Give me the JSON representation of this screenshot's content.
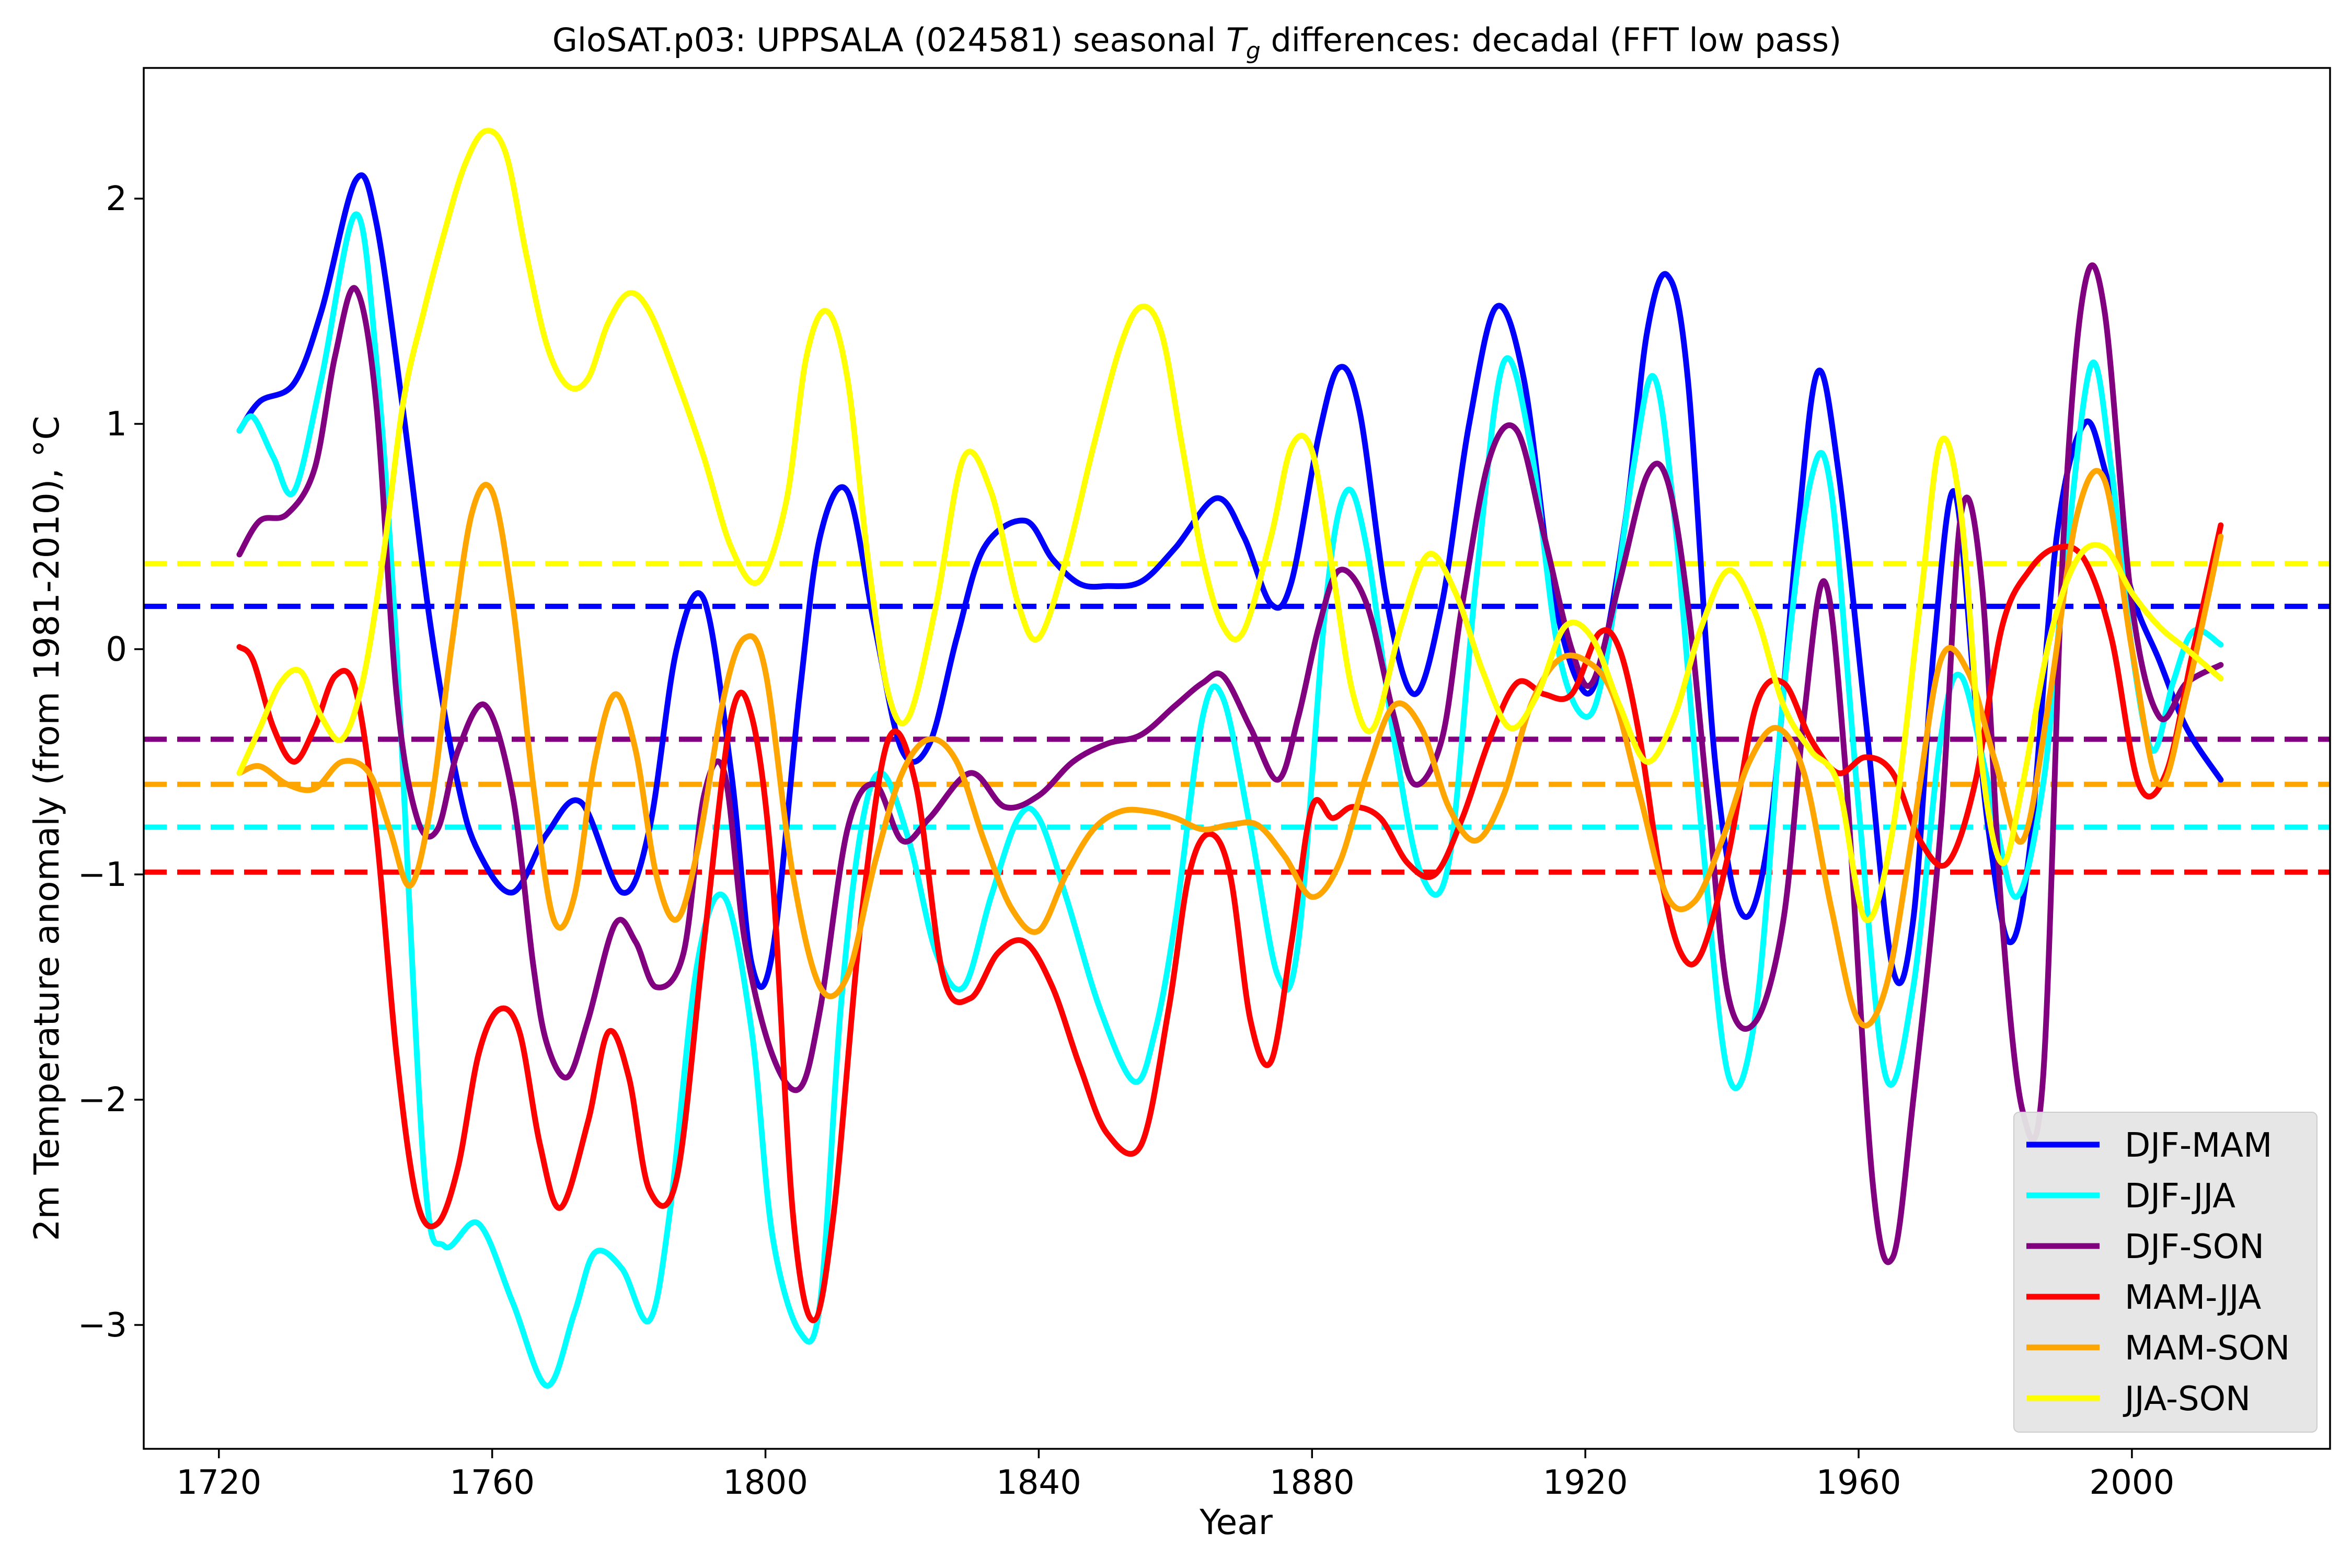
{
  "chart_data": {
    "type": "line",
    "title": "GloSAT.p03: UPPSALA (024581) seasonal T_g differences: decadal (FFT low pass)",
    "title_parts": {
      "prefix": "GloSAT.p03: UPPSALA (024581) seasonal ",
      "symbol": "T",
      "subscript": "g",
      "suffix": " differences: decadal (FFT low pass)"
    },
    "xlabel": "Year",
    "ylabel": "2m Temperature anomaly (from 1981-2010), °C",
    "xlim": [
      1709,
      2029
    ],
    "ylim": [
      -3.55,
      2.58
    ],
    "xticks": [
      {
        "value": 1720,
        "label": "1720"
      },
      {
        "value": 1760,
        "label": "1760"
      },
      {
        "value": 1800,
        "label": "1800"
      },
      {
        "value": 1840,
        "label": "1840"
      },
      {
        "value": 1880,
        "label": "1880"
      },
      {
        "value": 1920,
        "label": "1920"
      },
      {
        "value": 1960,
        "label": "1960"
      },
      {
        "value": 2000,
        "label": "2000"
      }
    ],
    "yticks": [
      {
        "value": -3,
        "label": "−3"
      },
      {
        "value": -2,
        "label": "−2"
      },
      {
        "value": -1,
        "label": "−1"
      },
      {
        "value": 0,
        "label": "0"
      },
      {
        "value": 1,
        "label": "1"
      },
      {
        "value": 2,
        "label": "2"
      }
    ],
    "grid": false,
    "legend_position": "lower-right",
    "series": [
      {
        "name": "DJF-MAM",
        "color": "#0000ff",
        "mean": 0.19,
        "x": [
          1723,
          1726,
          1731,
          1735,
          1740,
          1743,
          1747,
          1751,
          1755,
          1758,
          1763,
          1768,
          1773,
          1779,
          1783,
          1787,
          1791,
          1795,
          1798,
          1801,
          1805,
          1808,
          1812,
          1816,
          1820,
          1824,
          1828,
          1832,
          1838,
          1842,
          1846,
          1850,
          1855,
          1860,
          1866,
          1870,
          1874,
          1877,
          1881,
          1884,
          1887,
          1891,
          1895,
          1899,
          1903,
          1907,
          1911,
          1915,
          1919,
          1922,
          1926,
          1929,
          1932,
          1935,
          1939,
          1943,
          1947,
          1951,
          1954,
          1957,
          1961,
          1965,
          1968,
          1971,
          1974,
          1977,
          1979,
          1982,
          1985,
          1989,
          1993,
          1996,
          2000,
          2004,
          2008,
          2013
        ],
        "y": [
          0.97,
          1.1,
          1.18,
          1.5,
          2.08,
          1.9,
          1.05,
          0.1,
          -0.6,
          -0.9,
          -1.08,
          -0.82,
          -0.68,
          -1.08,
          -0.8,
          0.0,
          0.22,
          -0.55,
          -1.4,
          -1.35,
          -0.2,
          0.5,
          0.7,
          0.1,
          -0.45,
          -0.42,
          0.05,
          0.45,
          0.57,
          0.4,
          0.29,
          0.28,
          0.3,
          0.45,
          0.67,
          0.5,
          0.2,
          0.3,
          0.95,
          1.25,
          1.05,
          0.2,
          -0.2,
          0.2,
          1.0,
          1.52,
          1.2,
          0.3,
          -0.15,
          -0.1,
          0.6,
          1.4,
          1.66,
          1.2,
          -0.5,
          -1.18,
          -0.8,
          0.5,
          1.23,
          0.8,
          -0.3,
          -1.42,
          -1.2,
          0.0,
          0.7,
          -0.2,
          -0.8,
          -1.3,
          -0.9,
          0.5,
          1.0,
          0.8,
          0.25,
          -0.05,
          -0.35,
          -0.58
        ]
      },
      {
        "name": "DJF-JJA",
        "color": "#00ffff",
        "mean": -0.79,
        "x": [
          1723,
          1725,
          1728,
          1731,
          1735,
          1740,
          1743,
          1746,
          1750,
          1753,
          1758,
          1763,
          1768,
          1772,
          1775,
          1779,
          1783,
          1786,
          1790,
          1794,
          1798,
          1801,
          1805,
          1808,
          1811,
          1814,
          1817,
          1821,
          1825,
          1829,
          1833,
          1837,
          1840,
          1844,
          1849,
          1854,
          1857,
          1860,
          1864,
          1867,
          1871,
          1875,
          1878,
          1882,
          1885,
          1888,
          1892,
          1896,
          1900,
          1904,
          1908,
          1912,
          1916,
          1920,
          1923,
          1927,
          1930,
          1933,
          1937,
          1941,
          1945,
          1949,
          1953,
          1956,
          1960,
          1964,
          1968,
          1972,
          1975,
          1979,
          1983,
          1987,
          1990,
          1994,
          1997,
          2000,
          2003,
          2006,
          2009,
          2013
        ],
        "y": [
          0.97,
          1.03,
          0.85,
          0.7,
          1.2,
          1.93,
          1.3,
          0.0,
          -2.3,
          -2.65,
          -2.55,
          -2.9,
          -3.27,
          -2.95,
          -2.68,
          -2.75,
          -2.98,
          -2.5,
          -1.4,
          -1.1,
          -1.7,
          -2.6,
          -3.03,
          -2.9,
          -1.6,
          -0.8,
          -0.55,
          -0.85,
          -1.35,
          -1.5,
          -1.1,
          -0.75,
          -0.75,
          -1.1,
          -1.6,
          -1.92,
          -1.7,
          -1.2,
          -0.3,
          -0.22,
          -0.8,
          -1.45,
          -1.3,
          0.2,
          0.7,
          0.45,
          -0.4,
          -1.0,
          -0.95,
          0.3,
          1.27,
          0.9,
          0.0,
          -0.3,
          -0.05,
          0.8,
          1.21,
          0.6,
          -0.8,
          -1.9,
          -1.6,
          -0.2,
          0.75,
          0.7,
          -0.7,
          -1.9,
          -1.5,
          -0.4,
          -0.12,
          -0.6,
          -1.1,
          -0.6,
          0.3,
          1.26,
          0.8,
          0.0,
          -0.45,
          -0.15,
          0.08,
          0.02
        ]
      },
      {
        "name": "DJF-SON",
        "color": "#800080",
        "mean": -0.4,
        "x": [
          1723,
          1726,
          1730,
          1734,
          1737,
          1740,
          1743,
          1746,
          1749,
          1752,
          1755,
          1759,
          1763,
          1766,
          1768,
          1771,
          1774,
          1778,
          1781,
          1784,
          1788,
          1791,
          1794,
          1797,
          1801,
          1805,
          1808,
          1812,
          1816,
          1820,
          1824,
          1830,
          1835,
          1840,
          1845,
          1850,
          1855,
          1860,
          1864,
          1867,
          1871,
          1875,
          1878,
          1881,
          1884,
          1888,
          1892,
          1895,
          1899,
          1902,
          1906,
          1910,
          1914,
          1918,
          1921,
          1925,
          1929,
          1932,
          1935,
          1938,
          1941,
          1945,
          1949,
          1952,
          1955,
          1958,
          1962,
          1965,
          1968,
          1972,
          1975,
          1978,
          1981,
          1984,
          1987,
          1990,
          1993,
          1996,
          2000,
          2004,
          2008,
          2013
        ],
        "y": [
          0.42,
          0.57,
          0.6,
          0.8,
          1.3,
          1.6,
          1.1,
          -0.2,
          -0.75,
          -0.8,
          -0.45,
          -0.25,
          -0.65,
          -1.4,
          -1.75,
          -1.9,
          -1.65,
          -1.22,
          -1.3,
          -1.5,
          -1.35,
          -0.65,
          -0.55,
          -1.3,
          -1.8,
          -1.95,
          -1.6,
          -0.8,
          -0.6,
          -0.85,
          -0.75,
          -0.55,
          -0.7,
          -0.65,
          -0.5,
          -0.42,
          -0.38,
          -0.25,
          -0.15,
          -0.12,
          -0.35,
          -0.58,
          -0.3,
          0.1,
          0.35,
          0.2,
          -0.3,
          -0.6,
          -0.4,
          0.2,
          0.85,
          0.97,
          0.5,
          0.0,
          -0.15,
          0.3,
          0.77,
          0.75,
          0.2,
          -0.7,
          -1.55,
          -1.65,
          -1.2,
          -0.3,
          0.3,
          -0.5,
          -2.35,
          -2.7,
          -2.0,
          -0.8,
          0.6,
          0.3,
          -1.2,
          -2.05,
          -1.9,
          0.5,
          1.6,
          1.5,
          0.2,
          -0.3,
          -0.15,
          -0.07
        ]
      },
      {
        "name": "MAM-JJA",
        "color": "#ff0000",
        "mean": -0.99,
        "x": [
          1723,
          1725,
          1728,
          1731,
          1734,
          1737,
          1740,
          1743,
          1746,
          1749,
          1752,
          1755,
          1758,
          1761,
          1764,
          1767,
          1770,
          1774,
          1777,
          1780,
          1783,
          1787,
          1791,
          1795,
          1798,
          1801,
          1804,
          1807,
          1810,
          1814,
          1818,
          1822,
          1826,
          1830,
          1834,
          1838,
          1842,
          1846,
          1850,
          1855,
          1859,
          1862,
          1865,
          1868,
          1871,
          1874,
          1877,
          1880,
          1883,
          1886,
          1890,
          1894,
          1898,
          1902,
          1906,
          1910,
          1914,
          1918,
          1922,
          1925,
          1928,
          1931,
          1934,
          1937,
          1941,
          1945,
          1949,
          1953,
          1957,
          1961,
          1965,
          1969,
          1973,
          1977,
          1981,
          1985,
          1989,
          1993,
          1997,
          2001,
          2005,
          2009,
          2013
        ],
        "y": [
          0.01,
          -0.05,
          -0.35,
          -0.5,
          -0.35,
          -0.12,
          -0.18,
          -0.8,
          -1.8,
          -2.45,
          -2.55,
          -2.3,
          -1.8,
          -1.6,
          -1.7,
          -2.2,
          -2.48,
          -2.1,
          -1.7,
          -1.9,
          -2.4,
          -2.35,
          -1.3,
          -0.3,
          -0.3,
          -1.0,
          -2.5,
          -2.98,
          -2.5,
          -1.2,
          -0.4,
          -0.6,
          -1.45,
          -1.55,
          -1.35,
          -1.3,
          -1.5,
          -1.85,
          -2.15,
          -2.2,
          -1.6,
          -1.0,
          -0.82,
          -1.0,
          -1.65,
          -1.83,
          -1.3,
          -0.7,
          -0.75,
          -0.7,
          -0.75,
          -0.95,
          -1.0,
          -0.75,
          -0.4,
          -0.15,
          -0.2,
          -0.2,
          0.07,
          0.0,
          -0.4,
          -1.0,
          -1.35,
          -1.35,
          -0.9,
          -0.25,
          -0.15,
          -0.4,
          -0.55,
          -0.48,
          -0.55,
          -0.85,
          -0.95,
          -0.6,
          0.1,
          0.35,
          0.45,
          0.4,
          0.05,
          -0.6,
          -0.55,
          0.0,
          0.55
        ]
      },
      {
        "name": "MAM-SON",
        "color": "#ffa500",
        "mean": -0.6,
        "x": [
          1723,
          1726,
          1730,
          1734,
          1738,
          1742,
          1745,
          1748,
          1751,
          1754,
          1757,
          1760,
          1763,
          1766,
          1769,
          1772,
          1775,
          1778,
          1781,
          1784,
          1787,
          1790,
          1794,
          1797,
          1800,
          1804,
          1808,
          1812,
          1816,
          1820,
          1824,
          1828,
          1832,
          1836,
          1840,
          1844,
          1848,
          1852,
          1856,
          1860,
          1864,
          1868,
          1872,
          1876,
          1880,
          1884,
          1888,
          1892,
          1896,
          1900,
          1904,
          1908,
          1912,
          1916,
          1920,
          1924,
          1928,
          1932,
          1936,
          1940,
          1944,
          1948,
          1952,
          1956,
          1960,
          1964,
          1968,
          1972,
          1976,
          1980,
          1984,
          1988,
          1992,
          1996,
          2000,
          2004,
          2008,
          2013
        ],
        "y": [
          -0.55,
          -0.52,
          -0.6,
          -0.62,
          -0.5,
          -0.55,
          -0.8,
          -1.05,
          -0.7,
          0.0,
          0.6,
          0.7,
          0.2,
          -0.6,
          -1.2,
          -1.1,
          -0.5,
          -0.2,
          -0.45,
          -1.0,
          -1.2,
          -0.9,
          -0.2,
          0.05,
          -0.1,
          -1.0,
          -1.5,
          -1.45,
          -0.95,
          -0.55,
          -0.4,
          -0.5,
          -0.85,
          -1.15,
          -1.25,
          -1.0,
          -0.8,
          -0.72,
          -0.72,
          -0.75,
          -0.8,
          -0.78,
          -0.78,
          -0.92,
          -1.1,
          -0.95,
          -0.55,
          -0.25,
          -0.35,
          -0.7,
          -0.85,
          -0.65,
          -0.25,
          -0.05,
          -0.05,
          -0.2,
          -0.65,
          -1.1,
          -1.12,
          -0.85,
          -0.5,
          -0.35,
          -0.55,
          -1.15,
          -1.65,
          -1.5,
          -0.8,
          -0.05,
          -0.1,
          -0.5,
          -0.85,
          -0.2,
          0.6,
          0.75,
          0.0,
          -0.6,
          -0.2,
          0.5
        ]
      },
      {
        "name": "JJA-SON",
        "color": "#ffff00",
        "mean": 0.38,
        "x": [
          1723,
          1726,
          1729,
          1732,
          1735,
          1738,
          1741,
          1744,
          1747,
          1750,
          1753,
          1756,
          1759,
          1762,
          1765,
          1768,
          1771,
          1774,
          1777,
          1780,
          1783,
          1787,
          1791,
          1795,
          1799,
          1803,
          1806,
          1809,
          1812,
          1815,
          1818,
          1821,
          1825,
          1829,
          1833,
          1837,
          1840,
          1844,
          1848,
          1852,
          1855,
          1858,
          1861,
          1864,
          1867,
          1870,
          1874,
          1877,
          1880,
          1883,
          1886,
          1889,
          1893,
          1897,
          1901,
          1905,
          1909,
          1913,
          1917,
          1921,
          1925,
          1929,
          1933,
          1937,
          1941,
          1945,
          1949,
          1953,
          1957,
          1961,
          1965,
          1969,
          1972,
          1975,
          1978,
          1981,
          1984,
          1988,
          1992,
          1996,
          2000,
          2004,
          2008,
          2013
        ],
        "y": [
          -0.55,
          -0.35,
          -0.15,
          -0.1,
          -0.3,
          -0.4,
          -0.15,
          0.4,
          1.1,
          1.5,
          1.85,
          2.15,
          2.3,
          2.2,
          1.75,
          1.35,
          1.17,
          1.2,
          1.45,
          1.58,
          1.5,
          1.2,
          0.85,
          0.45,
          0.3,
          0.65,
          1.3,
          1.5,
          1.2,
          0.4,
          -0.2,
          -0.3,
          0.2,
          0.85,
          0.7,
          0.2,
          0.05,
          0.4,
          0.9,
          1.35,
          1.52,
          1.4,
          0.9,
          0.4,
          0.1,
          0.08,
          0.5,
          0.9,
          0.88,
          0.35,
          -0.2,
          -0.35,
          0.1,
          0.42,
          0.25,
          -0.1,
          -0.35,
          -0.2,
          0.1,
          0.05,
          -0.25,
          -0.5,
          -0.3,
          0.1,
          0.35,
          0.15,
          -0.25,
          -0.45,
          -0.6,
          -1.2,
          -0.8,
          0.2,
          0.92,
          0.6,
          -0.5,
          -0.95,
          -0.6,
          0.05,
          0.4,
          0.45,
          0.25,
          0.1,
          0.0,
          -0.13
        ]
      }
    ]
  }
}
